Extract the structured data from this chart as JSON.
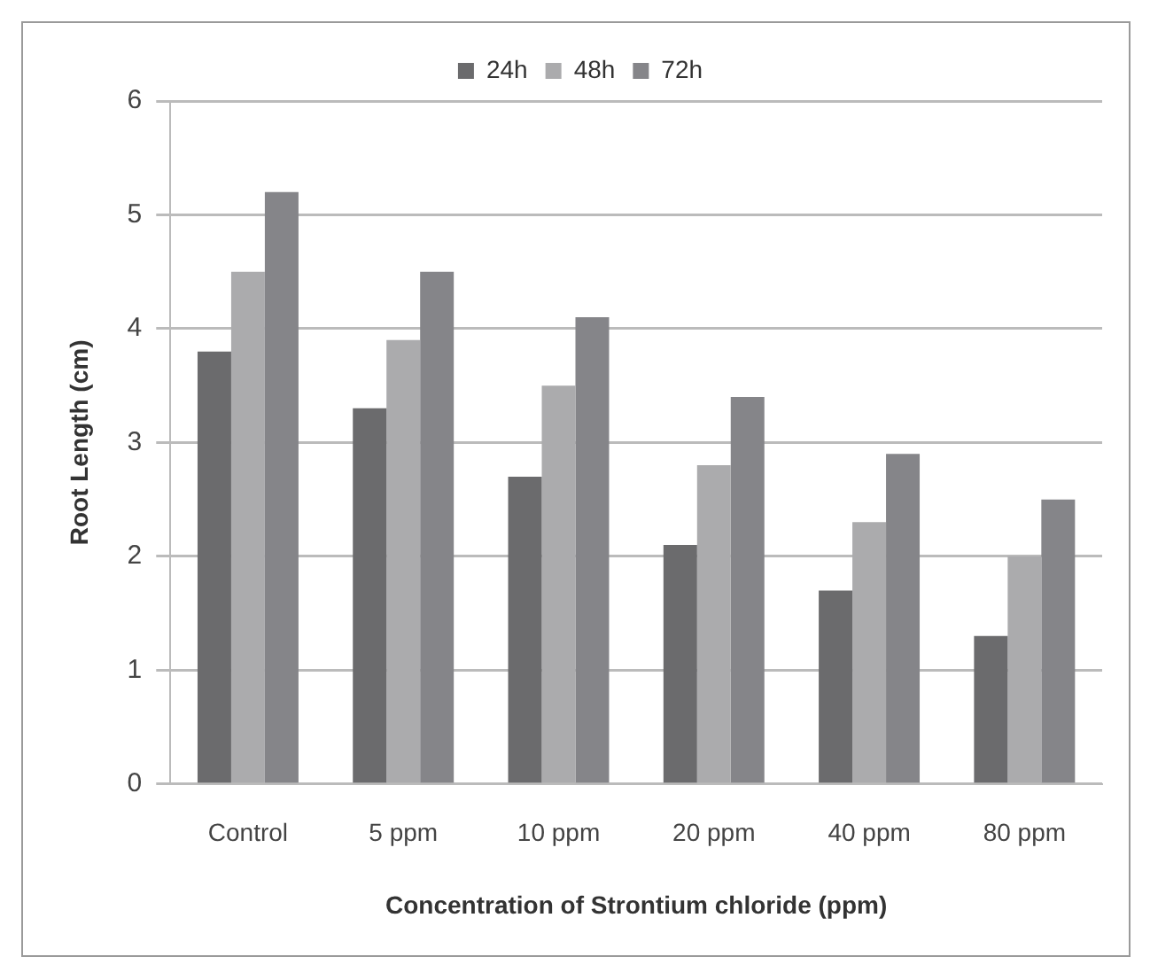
{
  "chart_data": {
    "type": "bar",
    "xlabel": "Concentration of Strontium chloride (ppm)",
    "ylabel": "Root Length (cm)",
    "categories": [
      "Control",
      "5 ppm",
      "10 ppm",
      "20 ppm",
      "40 ppm",
      "80 ppm"
    ],
    "series": [
      {
        "name": "24h",
        "color": "#6b6b6d",
        "values": [
          3.8,
          3.3,
          2.7,
          2.1,
          1.7,
          1.3
        ]
      },
      {
        "name": "48h",
        "color": "#ababad",
        "values": [
          4.5,
          3.9,
          3.5,
          2.8,
          2.3,
          2.0
        ]
      },
      {
        "name": "72h",
        "color": "#858589",
        "values": [
          5.2,
          4.5,
          4.1,
          3.4,
          2.9,
          2.5
        ]
      }
    ],
    "ylim": [
      0,
      6
    ],
    "yticks": [
      0,
      1,
      2,
      3,
      4,
      5,
      6
    ],
    "grid": "y",
    "legend": "top"
  }
}
